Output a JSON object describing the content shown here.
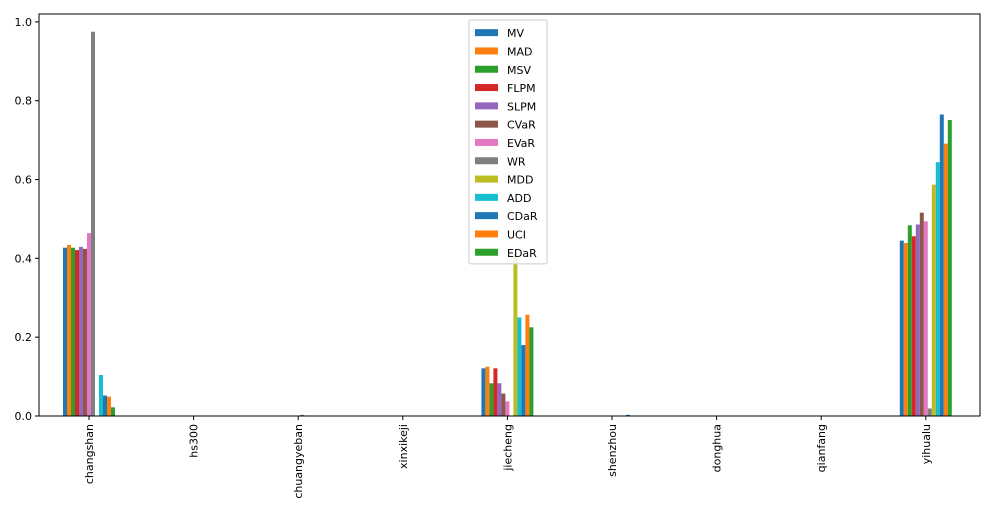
{
  "chart_data": {
    "type": "bar",
    "title": "",
    "xlabel": "",
    "ylabel": "",
    "categories": [
      "changshan",
      "hs300",
      "chuangyeban",
      "xinxikeji",
      "jiecheng",
      "shenzhou",
      "donghua",
      "qianfang",
      "yihualu"
    ],
    "ylim": [
      0,
      1.02
    ],
    "yticks": [
      0.0,
      0.2,
      0.4,
      0.6,
      0.8,
      1.0
    ],
    "ytick_labels": [
      "0.0",
      "0.2",
      "0.4",
      "0.6",
      "0.8",
      "1.0"
    ],
    "grid": false,
    "legend_position": "top-center",
    "series": [
      {
        "name": "MV",
        "color": "#1f77b4",
        "values": [
          0.427,
          0.0,
          0.0,
          0.0,
          0.121,
          0.0,
          0.0,
          0.0,
          0.445
        ]
      },
      {
        "name": "MAD",
        "color": "#ff7f0e",
        "values": [
          0.434,
          0.0,
          0.0,
          0.0,
          0.125,
          0.0,
          0.0,
          0.0,
          0.439
        ]
      },
      {
        "name": "MSV",
        "color": "#2ca02c",
        "values": [
          0.427,
          0.0,
          0.0,
          0.0,
          0.083,
          0.0,
          0.0,
          0.0,
          0.484
        ]
      },
      {
        "name": "FLPM",
        "color": "#d62728",
        "values": [
          0.421,
          0.0,
          0.0,
          0.0,
          0.121,
          0.0,
          0.0,
          0.0,
          0.456
        ]
      },
      {
        "name": "SLPM",
        "color": "#9467bd",
        "values": [
          0.429,
          0.0,
          0.0,
          0.0,
          0.083,
          0.0,
          0.0,
          0.0,
          0.486
        ]
      },
      {
        "name": "CVaR",
        "color": "#8c564b",
        "values": [
          0.424,
          0.0,
          0.0,
          0.0,
          0.057,
          0.0,
          0.0,
          0.0,
          0.516
        ]
      },
      {
        "name": "EVaR",
        "color": "#e377c2",
        "values": [
          0.464,
          0.0,
          0.0,
          0.0,
          0.037,
          0.0,
          0.0,
          0.0,
          0.494
        ]
      },
      {
        "name": "WR",
        "color": "#7f7f7f",
        "values": [
          0.975,
          0.0,
          0.003,
          0.0,
          0.0,
          0.0,
          0.0,
          0.0,
          0.019
        ]
      },
      {
        "name": "MDD",
        "color": "#bcbd22",
        "values": [
          0.0,
          0.0,
          0.0,
          0.0,
          0.413,
          0.0,
          0.0,
          0.0,
          0.587
        ]
      },
      {
        "name": "ADD",
        "color": "#17becf",
        "values": [
          0.104,
          0.0,
          0.0,
          0.0,
          0.25,
          0.0,
          0.0,
          0.0,
          0.644
        ]
      },
      {
        "name": "CDaR",
        "color": "#1f77b4",
        "values": [
          0.052,
          0.0,
          0.0,
          0.0,
          0.18,
          0.003,
          0.0,
          0.0,
          0.765
        ]
      },
      {
        "name": "UCI",
        "color": "#ff7f0e",
        "values": [
          0.049,
          0.0,
          0.0,
          0.0,
          0.257,
          0.0,
          0.0,
          0.0,
          0.691
        ]
      },
      {
        "name": "EDaR",
        "color": "#2ca02c",
        "values": [
          0.022,
          0.0,
          0.0,
          0.0,
          0.225,
          0.0,
          0.0,
          0.0,
          0.751
        ]
      }
    ]
  }
}
